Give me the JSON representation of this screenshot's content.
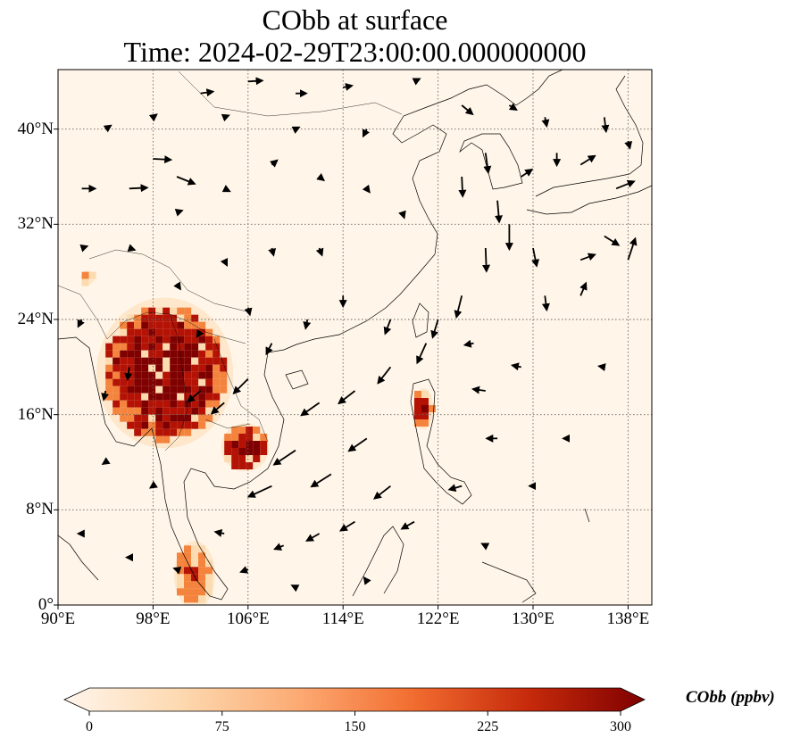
{
  "title": {
    "line1": "CObb at surface",
    "line2": "Time: 2024-02-29T23:00:00.000000000"
  },
  "map": {
    "lon_range": [
      90,
      140
    ],
    "lat_range": [
      0,
      45
    ],
    "lon_ticks": [
      {
        "value": 90,
        "label": "90°E"
      },
      {
        "value": 98,
        "label": "98°E"
      },
      {
        "value": 106,
        "label": "106°E"
      },
      {
        "value": 114,
        "label": "114°E"
      },
      {
        "value": 122,
        "label": "122°E"
      },
      {
        "value": 130,
        "label": "130°E"
      },
      {
        "value": 138,
        "label": "138°E"
      }
    ],
    "lat_ticks": [
      {
        "value": 0,
        "label": "0°"
      },
      {
        "value": 8,
        "label": "8°N"
      },
      {
        "value": 16,
        "label": "16°N"
      },
      {
        "value": 24,
        "label": "24°N"
      },
      {
        "value": 32,
        "label": "32°N"
      },
      {
        "value": 40,
        "label": "40°N"
      }
    ],
    "gridlines": true,
    "field_colors": {
      "background": "#fff5e8",
      "low": "#fddbb0",
      "mid": "#f4833d",
      "high": "#b31205",
      "max": "#7f0000"
    },
    "hotspots": [
      {
        "region": "northern Indochina",
        "lon": [
          94,
          104
        ],
        "lat": [
          14,
          25
        ],
        "level": 300
      },
      {
        "region": "Cambodia",
        "lon": [
          104,
          107.5
        ],
        "lat": [
          11.5,
          15
        ],
        "level": 300
      },
      {
        "region": "northern Luzon",
        "lon": [
          120,
          121.5
        ],
        "lat": [
          15,
          18
        ],
        "level": 280
      },
      {
        "region": "northern Myanmar spot",
        "lon": [
          92,
          93
        ],
        "lat": [
          27,
          28
        ],
        "level": 150
      },
      {
        "region": "Malay Peninsula",
        "lon": [
          100,
          103
        ],
        "lat": [
          0,
          5
        ],
        "level": 180
      }
    ],
    "wind_vectors": [
      {
        "lon": 92,
        "lat": 35,
        "u": 1.5,
        "v": 0
      },
      {
        "lon": 96,
        "lat": 35,
        "u": 2,
        "v": 0.1
      },
      {
        "lon": 98,
        "lat": 37.5,
        "u": 2,
        "v": -0.1
      },
      {
        "lon": 100,
        "lat": 36,
        "u": 2,
        "v": -0.8
      },
      {
        "lon": 102,
        "lat": 43,
        "u": 1.4,
        "v": 0.2
      },
      {
        "lon": 106,
        "lat": 44,
        "u": 1.6,
        "v": 0.1
      },
      {
        "lon": 110,
        "lat": 43,
        "u": 1.2,
        "v": 0
      },
      {
        "lon": 114,
        "lat": 43.5,
        "u": 1,
        "v": 0.2
      },
      {
        "lon": 108,
        "lat": 37,
        "u": 0.6,
        "v": 0.5
      },
      {
        "lon": 112,
        "lat": 36,
        "u": 0.5,
        "v": -0.4
      },
      {
        "lon": 116,
        "lat": 40,
        "u": -0.4,
        "v": -0.8
      },
      {
        "lon": 120,
        "lat": 44,
        "u": 0.6,
        "v": 0.3
      },
      {
        "lon": 124,
        "lat": 42,
        "u": 1.2,
        "v": -1
      },
      {
        "lon": 126,
        "lat": 38,
        "u": 0.3,
        "v": -2.2
      },
      {
        "lon": 124,
        "lat": 36,
        "u": 0.1,
        "v": -2.2
      },
      {
        "lon": 127,
        "lat": 34,
        "u": 0.2,
        "v": -2.4
      },
      {
        "lon": 128,
        "lat": 32,
        "u": 0,
        "v": -2.8
      },
      {
        "lon": 126,
        "lat": 30,
        "u": 0.1,
        "v": -2.6
      },
      {
        "lon": 129,
        "lat": 36,
        "u": 1.2,
        "v": 0.8
      },
      {
        "lon": 134,
        "lat": 37,
        "u": 1.6,
        "v": 1
      },
      {
        "lon": 137,
        "lat": 35,
        "u": 2,
        "v": 0.8
      },
      {
        "lon": 136,
        "lat": 31,
        "u": 1.6,
        "v": -1
      },
      {
        "lon": 134,
        "lat": 29,
        "u": 1.6,
        "v": 0.6
      },
      {
        "lon": 138,
        "lat": 29,
        "u": 0.8,
        "v": 2.4
      },
      {
        "lon": 134,
        "lat": 26,
        "u": 0.6,
        "v": 1.4
      },
      {
        "lon": 132,
        "lat": 38,
        "u": 0,
        "v": -1.4
      },
      {
        "lon": 130,
        "lat": 30,
        "u": 0.4,
        "v": -2
      },
      {
        "lon": 131,
        "lat": 26,
        "u": 0.2,
        "v": -1.6
      },
      {
        "lon": 124,
        "lat": 26,
        "u": -0.6,
        "v": -2.4
      },
      {
        "lon": 121,
        "lat": 22,
        "u": -1,
        "v": -2.2
      },
      {
        "lon": 118,
        "lat": 20,
        "u": -1.4,
        "v": -1.8
      },
      {
        "lon": 115,
        "lat": 18,
        "u": -1.8,
        "v": -1.4
      },
      {
        "lon": 112,
        "lat": 17,
        "u": -2,
        "v": -1.4
      },
      {
        "lon": 110,
        "lat": 13,
        "u": -2.4,
        "v": -1.6
      },
      {
        "lon": 108,
        "lat": 10,
        "u": -2.6,
        "v": -1.2
      },
      {
        "lon": 113,
        "lat": 11,
        "u": -2.2,
        "v": -1.4
      },
      {
        "lon": 116,
        "lat": 14,
        "u": -2,
        "v": -1.4
      },
      {
        "lon": 118,
        "lat": 10,
        "u": -1.8,
        "v": -1.4
      },
      {
        "lon": 115,
        "lat": 7,
        "u": -1.6,
        "v": -1
      },
      {
        "lon": 112,
        "lat": 6,
        "u": -1.4,
        "v": -0.8
      },
      {
        "lon": 109,
        "lat": 5,
        "u": -1,
        "v": -0.4
      },
      {
        "lon": 106,
        "lat": 3,
        "u": -0.8,
        "v": -0.3
      },
      {
        "lon": 104,
        "lat": 6,
        "u": -1,
        "v": 0.2
      },
      {
        "lon": 120,
        "lat": 7,
        "u": -1.4,
        "v": -0.8
      },
      {
        "lon": 124,
        "lat": 10,
        "u": -1.4,
        "v": -0.4
      },
      {
        "lon": 127,
        "lat": 14,
        "u": -1.2,
        "v": 0
      },
      {
        "lon": 126,
        "lat": 18,
        "u": -1.4,
        "v": 0.2
      },
      {
        "lon": 129,
        "lat": 20,
        "u": -1,
        "v": 0.2
      },
      {
        "lon": 125,
        "lat": 22,
        "u": -1,
        "v": -0.2
      },
      {
        "lon": 122,
        "lat": 24,
        "u": -0.6,
        "v": -2
      },
      {
        "lon": 118,
        "lat": 24,
        "u": -0.6,
        "v": -1.6
      },
      {
        "lon": 114,
        "lat": 26,
        "u": 0,
        "v": -1.2
      },
      {
        "lon": 111,
        "lat": 24,
        "u": -0.2,
        "v": -1
      },
      {
        "lon": 108,
        "lat": 22,
        "u": -0.6,
        "v": -1.2
      },
      {
        "lon": 106,
        "lat": 19,
        "u": -1.6,
        "v": -1.6
      },
      {
        "lon": 104,
        "lat": 17,
        "u": -1.4,
        "v": -1.2
      },
      {
        "lon": 102,
        "lat": 18,
        "u": -1.4,
        "v": -1.2
      },
      {
        "lon": 96,
        "lat": 20,
        "u": -0.2,
        "v": -1.4
      },
      {
        "lon": 94,
        "lat": 18,
        "u": -0.2,
        "v": -1
      },
      {
        "lon": 92,
        "lat": 24,
        "u": -0.4,
        "v": -0.8
      },
      {
        "lon": 100,
        "lat": 27,
        "u": 0.4,
        "v": -0.6
      },
      {
        "lon": 104,
        "lat": 29,
        "u": 0.3,
        "v": -0.6
      },
      {
        "lon": 108,
        "lat": 30,
        "u": 0.2,
        "v": -0.8
      },
      {
        "lon": 112,
        "lat": 30,
        "u": 0.3,
        "v": -0.8
      },
      {
        "lon": 96,
        "lat": 30,
        "u": 0.6,
        "v": -0.2
      },
      {
        "lon": 92,
        "lat": 30,
        "u": 0.6,
        "v": 0.2
      },
      {
        "lon": 104,
        "lat": 35,
        "u": 0.6,
        "v": -0.3
      },
      {
        "lon": 100,
        "lat": 33,
        "u": 0.6,
        "v": 0.2
      },
      {
        "lon": 94,
        "lat": 40,
        "u": 0.6,
        "v": 0.4
      },
      {
        "lon": 98,
        "lat": 41,
        "u": 0.4,
        "v": 0.3
      },
      {
        "lon": 104,
        "lat": 41,
        "u": 0.5,
        "v": 0.2
      },
      {
        "lon": 110,
        "lat": 40,
        "u": 0.4,
        "v": 0.2
      },
      {
        "lon": 128,
        "lat": 42,
        "u": 0.8,
        "v": -0.5
      },
      {
        "lon": 131,
        "lat": 41,
        "u": 0.2,
        "v": -1
      },
      {
        "lon": 136,
        "lat": 41,
        "u": 0.2,
        "v": -1.6
      },
      {
        "lon": 138,
        "lat": 39,
        "u": 0.2,
        "v": -0.8
      },
      {
        "lon": 136,
        "lat": 20,
        "u": -0.6,
        "v": 0.1
      },
      {
        "lon": 133,
        "lat": 14,
        "u": -0.6,
        "v": 0
      },
      {
        "lon": 130,
        "lat": 10,
        "u": -0.4,
        "v": 0
      },
      {
        "lon": 126,
        "lat": 5,
        "u": -0.4,
        "v": 0.2
      },
      {
        "lon": 98,
        "lat": 10,
        "u": -0.3,
        "v": -0.2
      },
      {
        "lon": 94,
        "lat": 12,
        "u": -0.3,
        "v": -0.2
      },
      {
        "lon": 92,
        "lat": 6,
        "u": -0.4,
        "v": 0
      },
      {
        "lon": 96,
        "lat": 4,
        "u": -0.3,
        "v": 0
      },
      {
        "lon": 100,
        "lat": 3,
        "u": -0.3,
        "v": 0.1
      },
      {
        "lon": 110,
        "lat": 1.5,
        "u": -0.4,
        "v": 0.2
      },
      {
        "lon": 116,
        "lat": 2,
        "u": -0.3,
        "v": 0.4
      },
      {
        "lon": 102,
        "lat": 23,
        "u": -0.4,
        "v": -0.6
      },
      {
        "lon": 106,
        "lat": 25,
        "u": 0.2,
        "v": -0.8
      },
      {
        "lon": 119,
        "lat": 33,
        "u": 0.2,
        "v": -0.6
      },
      {
        "lon": 116,
        "lat": 35,
        "u": 0.3,
        "v": -0.4
      }
    ]
  },
  "colorbar": {
    "label": "CObb (ppbv)",
    "vmin": 0,
    "vmax": 300,
    "extend": "both",
    "ticks": [
      {
        "value": 0,
        "label": "0"
      },
      {
        "value": 75,
        "label": "75"
      },
      {
        "value": 150,
        "label": "150"
      },
      {
        "value": 225,
        "label": "225"
      },
      {
        "value": 300,
        "label": "300"
      }
    ],
    "colors": [
      "#fff5eb",
      "#fdd9b0",
      "#fcab74",
      "#f26d30",
      "#c62a0b",
      "#7f0000"
    ]
  }
}
